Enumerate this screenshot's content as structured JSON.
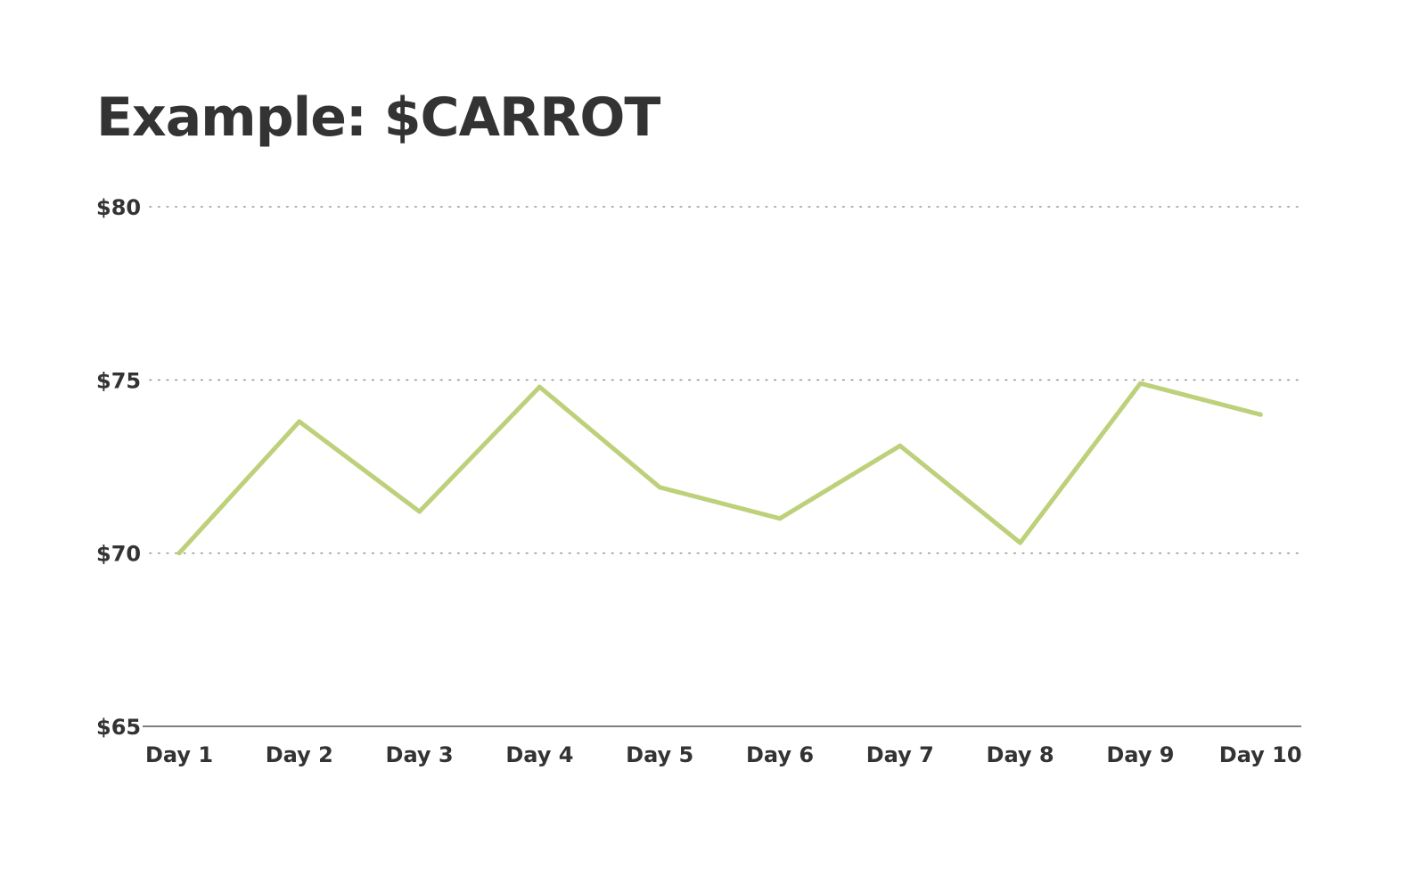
{
  "chart_data": {
    "type": "line",
    "title": "Example: $CARROT",
    "xlabel": "",
    "ylabel": "",
    "categories": [
      "Day 1",
      "Day 2",
      "Day 3",
      "Day 4",
      "Day 5",
      "Day 6",
      "Day 7",
      "Day 8",
      "Day 9",
      "Day 10"
    ],
    "series": [
      {
        "values": [
          70.0,
          73.8,
          71.2,
          74.8,
          71.9,
          71.0,
          73.1,
          70.3,
          74.9,
          74.0
        ],
        "color": "#bdd07a"
      }
    ],
    "ylim": [
      65,
      80
    ],
    "yticks": [
      {
        "value": 65,
        "label": "$65"
      },
      {
        "value": 70,
        "label": "$70"
      },
      {
        "value": 75,
        "label": "$75"
      },
      {
        "value": 80,
        "label": "$80"
      }
    ],
    "grid": true,
    "legend": "none"
  },
  "colors": {
    "text": "#333333",
    "line": "#bdd07a",
    "grid": "#999999",
    "axis": "#555555"
  }
}
